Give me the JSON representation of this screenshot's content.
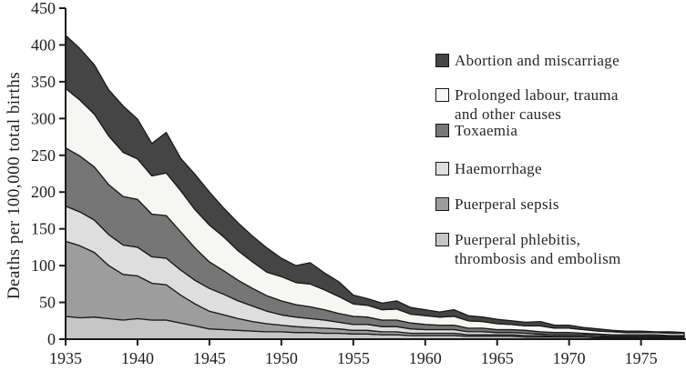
{
  "figure_title": "Maternal mortality by cause, stacked area chart",
  "chart_data": {
    "type": "area",
    "stacked": true,
    "title": "",
    "xlabel": "",
    "ylabel": "Deaths per 100,000 total births",
    "ylim": [
      0,
      450
    ],
    "ytick_step": 50,
    "yticks": [
      0,
      50,
      100,
      150,
      200,
      250,
      300,
      350,
      400,
      450
    ],
    "xticks": [
      1935,
      1940,
      1945,
      1950,
      1955,
      1960,
      1965,
      1970,
      1975
    ],
    "xlim": [
      1935,
      1978
    ],
    "grid": false,
    "legend_position": "right",
    "axis_color": "#1a1a1a",
    "x": [
      1935,
      1936,
      1937,
      1938,
      1939,
      1940,
      1941,
      1942,
      1943,
      1944,
      1945,
      1946,
      1947,
      1948,
      1949,
      1950,
      1951,
      1952,
      1953,
      1954,
      1955,
      1956,
      1957,
      1958,
      1959,
      1960,
      1961,
      1962,
      1963,
      1964,
      1965,
      1966,
      1967,
      1968,
      1969,
      1970,
      1971,
      1972,
      1973,
      1974,
      1975,
      1976,
      1977,
      1978
    ],
    "series": [
      {
        "id": "puerperal-phlebitis",
        "name": "Puerperal phlebitis, thrombosis and embolism",
        "color": "#c6c6c6",
        "values": [
          31,
          29,
          30,
          28,
          26,
          28,
          26,
          26,
          22,
          18,
          14,
          13,
          12,
          11,
          10,
          10,
          9,
          9,
          8,
          8,
          7,
          7,
          6,
          6,
          5,
          5,
          5,
          5,
          4,
          4,
          4,
          4,
          3,
          3,
          3,
          3,
          3,
          2,
          2,
          2,
          2,
          2,
          2,
          2
        ]
      },
      {
        "id": "puerperal-sepsis",
        "name": "Puerperal sepsis",
        "color": "#9d9d9d",
        "values": [
          102,
          98,
          88,
          72,
          62,
          58,
          50,
          48,
          38,
          30,
          24,
          20,
          16,
          13,
          11,
          9,
          8,
          7,
          7,
          6,
          5,
          5,
          4,
          4,
          3,
          3,
          3,
          3,
          2,
          2,
          2,
          2,
          2,
          2,
          1,
          1,
          1,
          1,
          1,
          1,
          1,
          1,
          1,
          1
        ]
      },
      {
        "id": "haemorrhage",
        "name": "Haemorrhage",
        "color": "#dedede",
        "values": [
          48,
          46,
          44,
          42,
          40,
          39,
          36,
          36,
          34,
          32,
          31,
          28,
          24,
          21,
          17,
          14,
          13,
          12,
          11,
          9,
          8,
          8,
          7,
          7,
          6,
          5,
          5,
          5,
          4,
          4,
          3,
          3,
          3,
          2,
          2,
          2,
          2,
          2,
          1,
          1,
          1,
          1,
          1,
          1
        ]
      },
      {
        "id": "toxaemia",
        "name": "Toxaemia",
        "color": "#767676",
        "values": [
          79,
          76,
          72,
          68,
          66,
          65,
          58,
          58,
          52,
          44,
          36,
          32,
          28,
          24,
          21,
          19,
          17,
          16,
          14,
          12,
          11,
          10,
          9,
          9,
          8,
          7,
          6,
          6,
          5,
          5,
          4,
          4,
          4,
          3,
          3,
          3,
          2,
          2,
          2,
          2,
          2,
          2,
          1,
          1
        ]
      },
      {
        "id": "prolonged-labour",
        "name": "Prolonged labour, trauma and other causes",
        "color": "#f6f6f3",
        "values": [
          81,
          76,
          72,
          66,
          60,
          55,
          52,
          58,
          56,
          52,
          50,
          46,
          40,
          36,
          32,
          33,
          30,
          31,
          27,
          23,
          17,
          16,
          14,
          15,
          12,
          12,
          11,
          12,
          10,
          9,
          8,
          7,
          6,
          8,
          6,
          6,
          5,
          4,
          4,
          3,
          3,
          3,
          3,
          3
        ]
      },
      {
        "id": "abortion",
        "name": "Abortion and miscarriage",
        "color": "#454545",
        "values": [
          72,
          70,
          67,
          63,
          63,
          54,
          44,
          55,
          44,
          48,
          45,
          39,
          38,
          35,
          33,
          25,
          23,
          29,
          23,
          20,
          12,
          9,
          9,
          11,
          9,
          8,
          7,
          9,
          7,
          6,
          6,
          5,
          5,
          6,
          4,
          4,
          3,
          3,
          2,
          2,
          2,
          1,
          2,
          1
        ]
      }
    ]
  },
  "legend": {
    "items": [
      {
        "series_id": "abortion",
        "color": "#454545",
        "lines": [
          "Abortion and miscarriage"
        ]
      },
      {
        "series_id": "prolonged-labour",
        "color": "#f6f6f3",
        "lines": [
          "Prolonged labour, trauma",
          "and other causes"
        ]
      },
      {
        "series_id": "toxaemia",
        "color": "#767676",
        "lines": [
          "Toxaemia"
        ]
      },
      {
        "series_id": "haemorrhage",
        "color": "#dedede",
        "lines": [
          "Haemorrhage"
        ]
      },
      {
        "series_id": "puerperal-sepsis",
        "color": "#9d9d9d",
        "lines": [
          "Puerperal sepsis"
        ]
      },
      {
        "series_id": "puerperal-phlebitis",
        "color": "#c6c6c6",
        "lines": [
          "Puerperal phlebitis,",
          "thrombosis and embolism"
        ]
      }
    ]
  }
}
